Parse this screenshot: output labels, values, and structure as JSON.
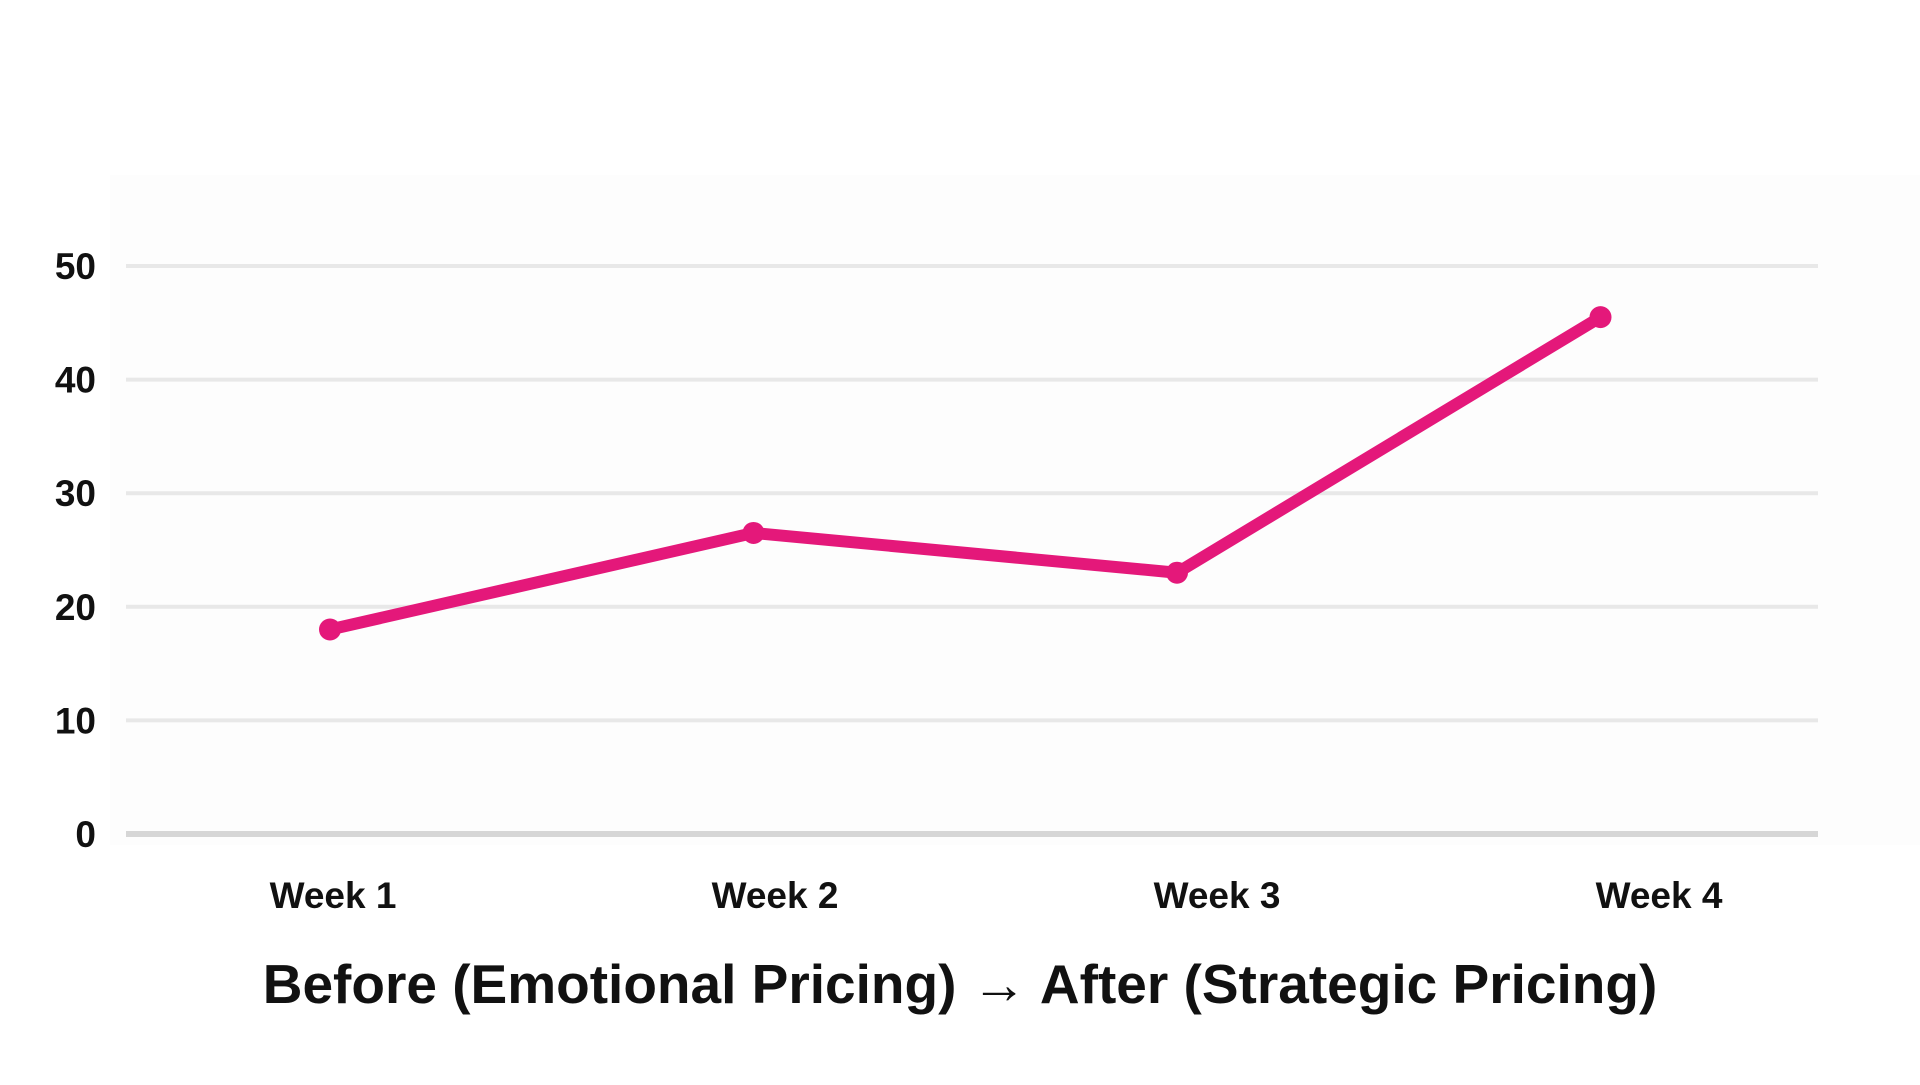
{
  "chart_data": {
    "type": "line",
    "categories": [
      "Week 1",
      "Week 2",
      "Week 3",
      "Week 4"
    ],
    "series": [
      {
        "values": [
          18,
          26.5,
          23,
          45.5
        ],
        "color": "#e4187a"
      }
    ],
    "yticks": [
      0,
      10,
      20,
      30,
      40,
      50
    ],
    "ylim": [
      0,
      50
    ],
    "grid": true,
    "legend": "none",
    "caption": "Before (Emotional Pricing) → After (Strategic Pricing)"
  }
}
